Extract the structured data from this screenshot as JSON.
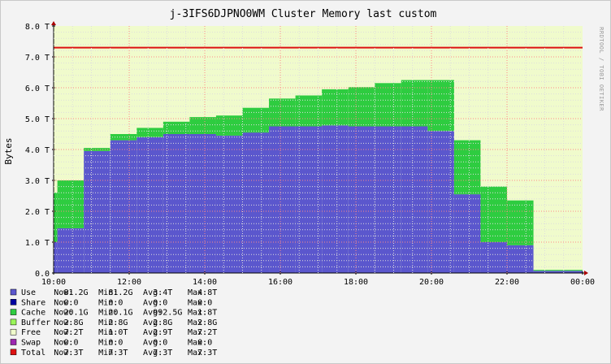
{
  "chart_data": {
    "type": "area",
    "title": "j-3IFS6DJPNO0WM Cluster Memory last custom",
    "ylabel": "Bytes",
    "watermark": "RRDTOOL / TOBI OETIKER",
    "ylim": [
      0,
      8.0
    ],
    "y_unit": "T",
    "y_ticks": [
      "0.0",
      "1.0 T",
      "2.0 T",
      "3.0 T",
      "4.0 T",
      "5.0 T",
      "6.0 T",
      "7.0 T",
      "8.0 T"
    ],
    "x_ticks": [
      "10:00",
      "12:00",
      "14:00",
      "16:00",
      "18:00",
      "20:00",
      "22:00",
      "00:00"
    ],
    "x_hours": [
      10,
      24
    ],
    "grid": true,
    "colors": {
      "canvas": "#f0fbcc",
      "free": "#f0fbcc",
      "use": "#5b57cd",
      "cache": "#2ecc40",
      "total": "#dd1111",
      "grid_major": "#ff8888",
      "grid_minor": "#dddddd"
    },
    "total_line": 7.3,
    "intervals": [
      {
        "start": 10.0,
        "end": 10.1,
        "use": 1.0,
        "cache": 1.6
      },
      {
        "start": 10.1,
        "end": 10.8,
        "use": 1.45,
        "cache": 1.55
      },
      {
        "start": 10.8,
        "end": 11.5,
        "use": 3.95,
        "cache": 0.1
      },
      {
        "start": 11.5,
        "end": 12.2,
        "use": 4.3,
        "cache": 0.2
      },
      {
        "start": 12.2,
        "end": 12.9,
        "use": 4.4,
        "cache": 0.3
      },
      {
        "start": 12.9,
        "end": 13.6,
        "use": 4.5,
        "cache": 0.4
      },
      {
        "start": 13.6,
        "end": 14.3,
        "use": 4.5,
        "cache": 0.55
      },
      {
        "start": 14.3,
        "end": 15.0,
        "use": 4.45,
        "cache": 0.65
      },
      {
        "start": 15.0,
        "end": 15.7,
        "use": 4.55,
        "cache": 0.8
      },
      {
        "start": 15.7,
        "end": 16.4,
        "use": 4.75,
        "cache": 0.9
      },
      {
        "start": 16.4,
        "end": 17.1,
        "use": 4.75,
        "cache": 1.0
      },
      {
        "start": 17.1,
        "end": 17.8,
        "use": 4.78,
        "cache": 1.17
      },
      {
        "start": 17.8,
        "end": 18.5,
        "use": 4.75,
        "cache": 1.27
      },
      {
        "start": 18.5,
        "end": 19.2,
        "use": 4.75,
        "cache": 1.4
      },
      {
        "start": 19.2,
        "end": 19.9,
        "use": 4.75,
        "cache": 1.5
      },
      {
        "start": 19.9,
        "end": 20.6,
        "use": 4.6,
        "cache": 1.65
      },
      {
        "start": 20.6,
        "end": 21.3,
        "use": 2.55,
        "cache": 1.75
      },
      {
        "start": 21.3,
        "end": 22.0,
        "use": 1.0,
        "cache": 1.8
      },
      {
        "start": 22.0,
        "end": 22.7,
        "use": 0.9,
        "cache": 1.45
      },
      {
        "start": 22.7,
        "end": 24.0,
        "use": 0.07,
        "cache": 0.03
      }
    ],
    "legend": [
      {
        "name": "Use",
        "color": "#5b57cd",
        "now": "81.2G",
        "min": "81.2G",
        "avg": "3.4T",
        "max": "4.8T"
      },
      {
        "name": "Share",
        "color": "#0000a0",
        "now": "0.0",
        "min": "0.0",
        "avg": "0.0",
        "max": "0.0"
      },
      {
        "name": "Cache",
        "color": "#2ecc40",
        "now": "20.1G",
        "min": "20.1G",
        "avg": "992.5G",
        "max": "1.8T"
      },
      {
        "name": "Buffer",
        "color": "#9af55a",
        "now": "2.8G",
        "min": "2.8G",
        "avg": "2.8G",
        "max": "2.8G"
      },
      {
        "name": "Free",
        "color": "#f0fbcc",
        "now": "7.2T",
        "min": "1.0T",
        "avg": "2.9T",
        "max": "7.2T"
      },
      {
        "name": "Swap",
        "color": "#9c27b0",
        "now": "0.0",
        "min": "0.0",
        "avg": "0.0",
        "max": "0.0"
      },
      {
        "name": "Total",
        "color": "#dd1111",
        "now": "7.3T",
        "min": "7.3T",
        "avg": "7.3T",
        "max": "7.3T"
      }
    ],
    "legend_labels": {
      "now": "Now:",
      "min": "Min:",
      "avg": "Avg:",
      "max": "Max:"
    }
  }
}
